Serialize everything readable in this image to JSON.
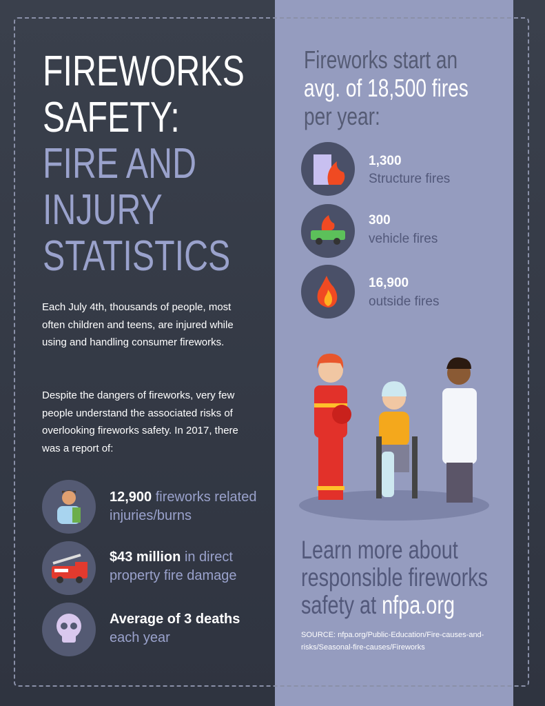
{
  "title": {
    "lines": [
      "FIREWORKS",
      "SAFETY:",
      "FIRE AND",
      "INJURY",
      "STATISTICS"
    ]
  },
  "intro": [
    "Each July 4th, thousands of people, most often children and teens, are injured while using and handling consumer fireworks.",
    "Despite the dangers of fireworks, very few people understand the associated risks of overlooking fireworks safety. In 2017, there was a report of:"
  ],
  "left_stats": [
    {
      "bold": "12,900",
      "text": "fireworks related injuries/burns"
    },
    {
      "bold": "$43 million",
      "text": "in direct property fire damage"
    },
    {
      "bold": "Average of 3 deaths",
      "text": "each year"
    }
  ],
  "right_heading": [
    "Fireworks start an",
    "avg. of 18,500 fires",
    "per year:"
  ],
  "fire_stats": [
    {
      "number": "1,300",
      "label": "Structure fires"
    },
    {
      "number": "300",
      "label": "vehicle fires"
    },
    {
      "number": "16,900",
      "label": "outside fires"
    }
  ],
  "cta": {
    "lines": [
      "Learn more about",
      "responsible fireworks",
      "safety at"
    ],
    "link": "nfpa.org"
  },
  "source": "SOURCE: nfpa.org/Public-Education/Fire-causes-and-risks/Seasonal-fire-causes/Fireworks"
}
